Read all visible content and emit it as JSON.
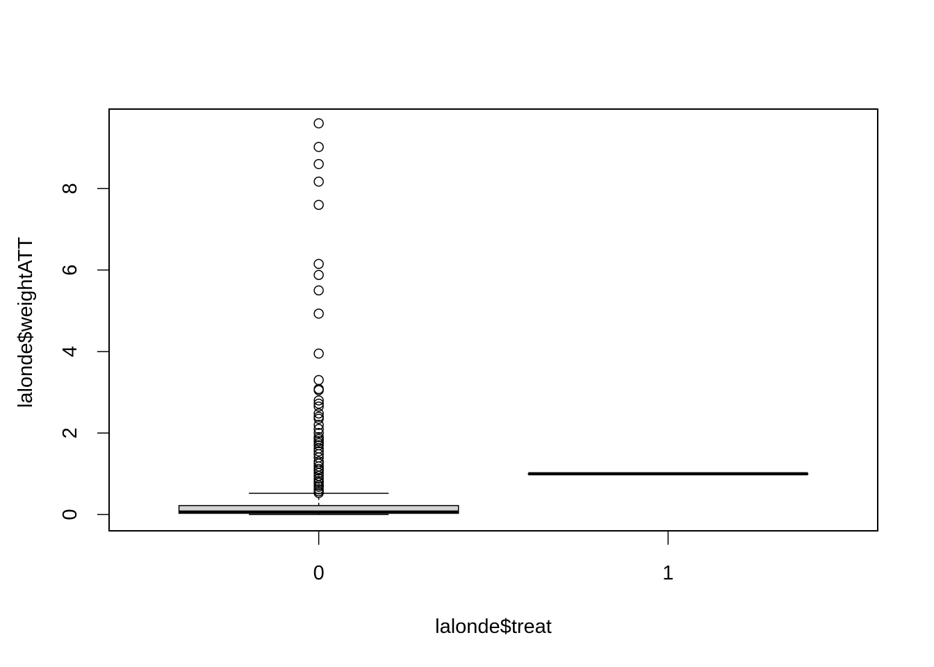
{
  "chart_data": {
    "type": "boxplot",
    "xlabel": "lalonde$treat",
    "ylabel": "lalonde$weightATT",
    "categories": [
      "0",
      "1"
    ],
    "ylim": [
      -0.4,
      9.95
    ],
    "yticks": [
      0,
      2,
      4,
      6,
      8
    ],
    "grid": false,
    "legend": "none",
    "box_fill": "#d3d3d3",
    "boxes": [
      {
        "category": "0",
        "lower_whisker": 0.0,
        "q1": 0.03,
        "median": 0.06,
        "q3": 0.22,
        "upper_whisker": 0.52,
        "outliers": [
          9.6,
          9.02,
          8.6,
          8.17,
          7.6,
          6.15,
          5.88,
          5.5,
          4.93,
          3.95,
          3.3,
          3.08,
          3.05,
          2.8,
          2.72,
          2.65,
          2.48,
          2.4,
          2.35,
          2.2,
          2.1,
          2.0,
          1.9,
          1.85,
          1.8,
          1.75,
          1.7,
          1.62,
          1.55,
          1.48,
          1.4,
          1.3,
          1.25,
          1.18,
          1.12,
          1.08,
          1.02,
          0.95,
          0.88,
          0.82,
          0.78,
          0.72,
          0.68,
          0.62,
          0.57,
          0.53
        ]
      },
      {
        "category": "1",
        "lower_whisker": 1.0,
        "q1": 1.0,
        "median": 1.0,
        "q3": 1.0,
        "upper_whisker": 1.0,
        "outliers": []
      }
    ]
  }
}
